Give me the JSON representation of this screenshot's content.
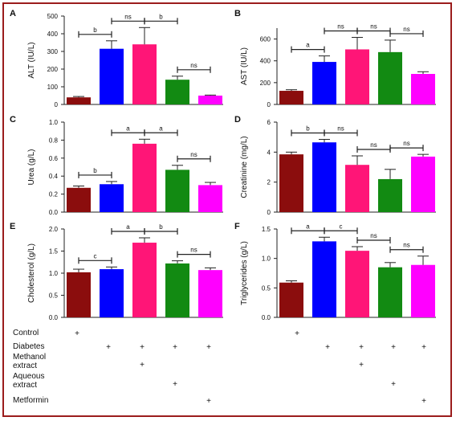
{
  "colors": {
    "frame": "#9b1c1c",
    "series": [
      "#8b0d0d",
      "#0000ff",
      "#ff1577",
      "#128a12",
      "#ff00ff"
    ]
  },
  "treatments": {
    "rows": [
      {
        "label": "Control",
        "marks": [
          true,
          false,
          false,
          false,
          false
        ]
      },
      {
        "label": "Diabetes",
        "marks": [
          false,
          true,
          true,
          true,
          true
        ]
      },
      {
        "label": "Methanol extract",
        "line1": "Methanol",
        "line2": "extract",
        "marks": [
          false,
          false,
          true,
          false,
          false
        ]
      },
      {
        "label": "Aqueous extract",
        "line1": "Aqueous",
        "line2": "extract",
        "marks": [
          false,
          false,
          false,
          true,
          false
        ]
      },
      {
        "label": "Metformin",
        "marks": [
          false,
          false,
          false,
          false,
          true
        ]
      }
    ],
    "mark_symbol": "+"
  },
  "chart_data": [
    {
      "panel": "A",
      "type": "bar",
      "ylabel": "ALT (IU/L)",
      "ylim": [
        0,
        500
      ],
      "yticks": [
        0,
        100,
        200,
        300,
        400,
        500
      ],
      "values": [
        40,
        315,
        340,
        140,
        50
      ],
      "errors": [
        5,
        45,
        95,
        20,
        3
      ],
      "comparisons": [
        {
          "from": 0,
          "to": 1,
          "label": "b"
        },
        {
          "from": 1,
          "to": 2,
          "label": "ns"
        },
        {
          "from": 2,
          "to": 3,
          "label": "b"
        },
        {
          "from": 3,
          "to": 4,
          "label": "ns"
        }
      ]
    },
    {
      "panel": "B",
      "type": "bar",
      "ylabel": "AST (IU/L)",
      "ylim": [
        0,
        700
      ],
      "yticks": [
        0,
        200,
        400,
        600
      ],
      "values": [
        125,
        390,
        505,
        480,
        280
      ],
      "errors": [
        10,
        55,
        110,
        110,
        20
      ],
      "comparisons": [
        {
          "from": 0,
          "to": 1,
          "label": "a"
        },
        {
          "from": 1,
          "to": 2,
          "label": "ns"
        },
        {
          "from": 2,
          "to": 3,
          "label": "ns"
        },
        {
          "from": 3,
          "to": 4,
          "label": "ns"
        }
      ]
    },
    {
      "panel": "C",
      "type": "bar",
      "ylabel": "Urea (g/L)",
      "ylim": [
        0,
        1.0
      ],
      "yticks": [
        0,
        0.2,
        0.4,
        0.6,
        0.8,
        1.0
      ],
      "values": [
        0.27,
        0.31,
        0.76,
        0.47,
        0.3
      ],
      "errors": [
        0.02,
        0.03,
        0.05,
        0.05,
        0.03
      ],
      "comparisons": [
        {
          "from": 0,
          "to": 1,
          "label": "b"
        },
        {
          "from": 1,
          "to": 2,
          "label": "a"
        },
        {
          "from": 2,
          "to": 3,
          "label": "a"
        },
        {
          "from": 3,
          "to": 4,
          "label": "ns"
        }
      ]
    },
    {
      "panel": "D",
      "type": "bar",
      "ylabel": "Creatinine (mg/L)",
      "ylim": [
        0,
        6
      ],
      "yticks": [
        0,
        2,
        4,
        6
      ],
      "values": [
        3.85,
        4.65,
        3.15,
        2.2,
        3.7
      ],
      "errors": [
        0.15,
        0.2,
        0.6,
        0.65,
        0.15
      ],
      "comparisons": [
        {
          "from": 0,
          "to": 1,
          "label": "b"
        },
        {
          "from": 1,
          "to": 2,
          "label": "ns"
        },
        {
          "from": 2,
          "to": 3,
          "label": "ns"
        },
        {
          "from": 3,
          "to": 4,
          "label": "ns"
        }
      ]
    },
    {
      "panel": "E",
      "type": "bar",
      "ylabel": "Cholesterol (g/L)",
      "ylim": [
        0,
        2.0
      ],
      "yticks": [
        0,
        0.5,
        1.0,
        1.5,
        2.0
      ],
      "values": [
        1.02,
        1.09,
        1.69,
        1.22,
        1.07
      ],
      "errors": [
        0.07,
        0.05,
        0.11,
        0.06,
        0.05
      ],
      "comparisons": [
        {
          "from": 0,
          "to": 1,
          "label": "c"
        },
        {
          "from": 1,
          "to": 2,
          "label": "a"
        },
        {
          "from": 2,
          "to": 3,
          "label": "b"
        },
        {
          "from": 3,
          "to": 4,
          "label": "ns"
        }
      ]
    },
    {
      "panel": "F",
      "type": "bar",
      "ylabel": "Triglycerides (g/L)",
      "ylim": [
        0,
        1.5
      ],
      "yticks": [
        0,
        0.5,
        1.0,
        1.5
      ],
      "values": [
        0.59,
        1.29,
        1.13,
        0.85,
        0.89
      ],
      "errors": [
        0.03,
        0.07,
        0.07,
        0.08,
        0.15
      ],
      "comparisons": [
        {
          "from": 0,
          "to": 1,
          "label": "a"
        },
        {
          "from": 1,
          "to": 2,
          "label": "c"
        },
        {
          "from": 2,
          "to": 3,
          "label": "ns"
        },
        {
          "from": 3,
          "to": 4,
          "label": "ns"
        }
      ]
    }
  ]
}
